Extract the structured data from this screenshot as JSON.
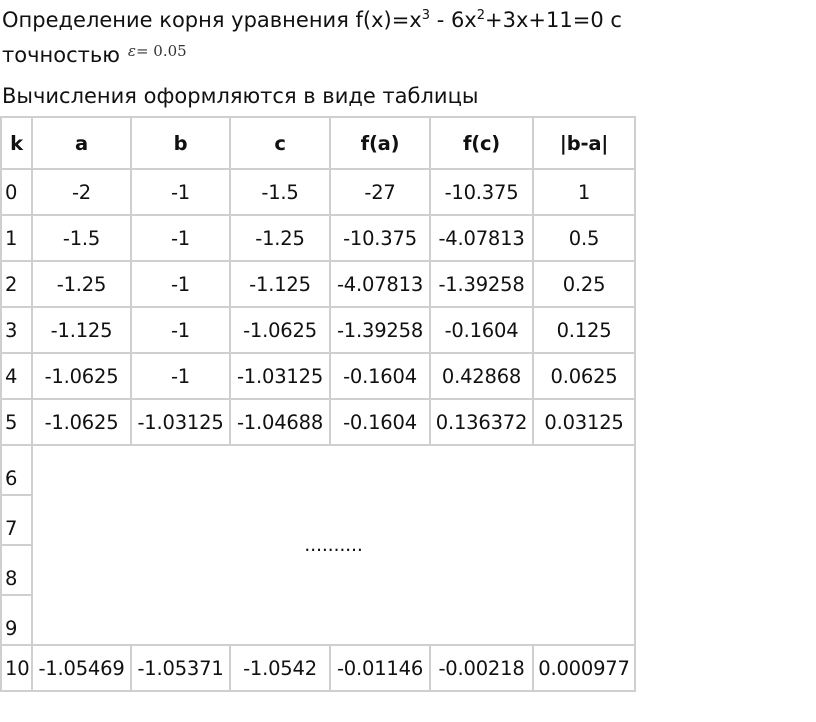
{
  "intro": {
    "line1_prefix": "Определение корня уравнения f(x)=x",
    "sup1": "3",
    "line1_mid": " - 6x",
    "sup2": "2",
    "line1_suffix": "+3x+11=0 с",
    "line2": "точностью",
    "epsilon_symbol": "ε",
    "epsilon_value": "= 0.05",
    "line3": "Вычисления оформляются в виде таблицы"
  },
  "table": {
    "headers": [
      "k",
      "a",
      "b",
      "c",
      "f(a)",
      "f(c)",
      "|b-a|"
    ],
    "rows": [
      [
        "0",
        "-2",
        "-1",
        "-1.5",
        "-27",
        "-10.375",
        "1"
      ],
      [
        "1",
        "-1.5",
        "-1",
        "-1.25",
        "-10.375",
        "-4.07813",
        "0.5"
      ],
      [
        "2",
        "-1.25",
        "-1",
        "-1.125",
        "-4.07813",
        "-1.39258",
        "0.25"
      ],
      [
        "3",
        "-1.125",
        "-1",
        "-1.0625",
        "-1.39258",
        "-0.1604",
        "0.125"
      ],
      [
        "4",
        "-1.0625",
        "-1",
        "-1.03125",
        "-0.1604",
        "0.42868",
        "0.0625"
      ],
      [
        "5",
        "-1.0625",
        "-1.03125",
        "-1.04688",
        "-0.1604",
        "0.136372",
        "0.03125"
      ]
    ],
    "skipped_k": [
      "6",
      "7",
      "8",
      "9"
    ],
    "ellipsis": "..........",
    "last_row": [
      "10",
      "-1.05469",
      "-1.05371",
      "-1.0542",
      "-0.01146",
      "-0.00218",
      "0.000977"
    ]
  }
}
